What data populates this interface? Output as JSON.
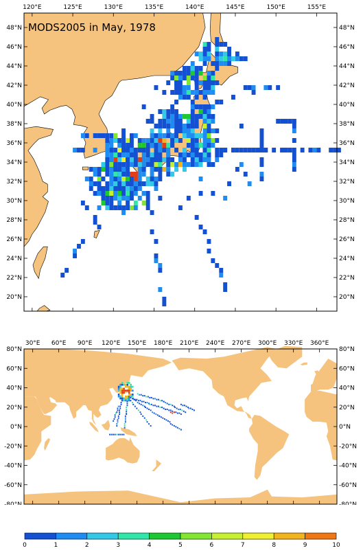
{
  "top_map": {
    "title": "MODS2005 in May, 1978",
    "lon_labels": [
      "120°E",
      "125°E",
      "130°E",
      "135°E",
      "140°E",
      "145°E",
      "150°E",
      "155°E"
    ],
    "lat_labels": [
      "48°N",
      "46°N",
      "44°N",
      "42°N",
      "40°N",
      "38°N",
      "36°N",
      "34°N",
      "32°N",
      "30°N",
      "28°N",
      "26°N",
      "24°N",
      "22°N",
      "20°N"
    ],
    "lon_range": [
      119,
      157.5
    ],
    "lat_range": [
      18.5,
      49.5
    ]
  },
  "bottom_map": {
    "lon_labels": [
      "30°E",
      "60°E",
      "90°E",
      "120°E",
      "150°E",
      "180°E",
      "210°E",
      "240°E",
      "270°E",
      "300°E",
      "330°E",
      "360°E"
    ],
    "lat_labels": [
      "80°N",
      "60°N",
      "40°N",
      "20°N",
      "0°N",
      "-20°N",
      "-40°N",
      "-60°N",
      "-80°N"
    ],
    "lon_range": [
      20,
      380
    ],
    "lat_range": [
      -80,
      80
    ]
  },
  "colorbar": {
    "labels": [
      "0",
      "1",
      "2",
      "3",
      "4",
      "5",
      "6",
      "7",
      "8",
      "9",
      "10"
    ],
    "colors": [
      "#1450d2",
      "#1e8cf0",
      "#32c8e6",
      "#32e6aa",
      "#1ec832",
      "#82e632",
      "#c8f032",
      "#f0f032",
      "#f0b41e",
      "#f07814",
      "#e63c14"
    ]
  },
  "land_color": "#f5c37d",
  "ocean_color": "#ffffff"
}
